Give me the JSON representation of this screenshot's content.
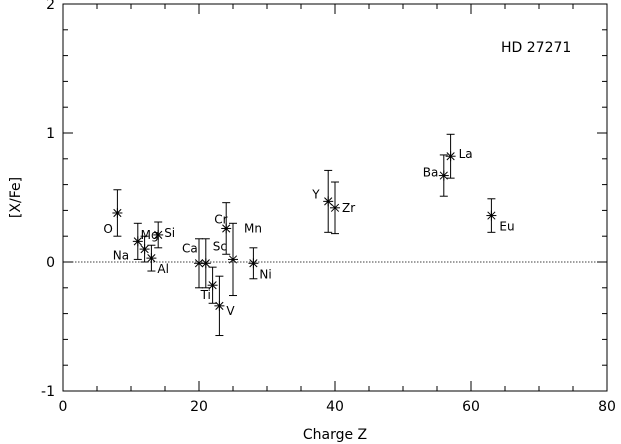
{
  "chart_data": {
    "type": "scatter",
    "title": "HD 27271",
    "xlabel": "Charge Z",
    "ylabel": "[X/Fe]",
    "xlim": [
      0,
      80
    ],
    "ylim": [
      -1.0,
      2.0
    ],
    "x_ticks": [
      "0",
      "20",
      "40",
      "60",
      "80"
    ],
    "y_ticks": [
      "-1",
      "0",
      "1",
      "2"
    ],
    "x_tick_values": [
      0,
      20,
      40,
      60,
      80
    ],
    "y_tick_values": [
      -1,
      0,
      1,
      2
    ],
    "reference_line_y": 0,
    "grid": false,
    "legend": "none",
    "points": [
      {
        "element": "O",
        "z": 8,
        "value": 0.38,
        "err": 0.18
      },
      {
        "element": "Na",
        "z": 11,
        "value": 0.16,
        "err": 0.14
      },
      {
        "element": "Mg",
        "z": 12,
        "value": 0.1,
        "err": 0.1
      },
      {
        "element": "Al",
        "z": 13,
        "value": 0.03,
        "err": 0.1
      },
      {
        "element": "Si",
        "z": 14,
        "value": 0.21,
        "err": 0.1
      },
      {
        "element": "Ca",
        "z": 20,
        "value": -0.01,
        "err": 0.19
      },
      {
        "element": "Sc",
        "z": 21,
        "value": -0.01,
        "err": 0.19
      },
      {
        "element": "Ti",
        "z": 22,
        "value": -0.18,
        "err": 0.14
      },
      {
        "element": "V",
        "z": 23,
        "value": -0.34,
        "err": 0.23
      },
      {
        "element": "Cr",
        "z": 24,
        "value": 0.26,
        "err": 0.2
      },
      {
        "element": "Mn",
        "z": 25,
        "value": 0.02,
        "err": 0.28
      },
      {
        "element": "Ni",
        "z": 28,
        "value": -0.01,
        "err": 0.12
      },
      {
        "element": "Y",
        "z": 39,
        "value": 0.47,
        "err": 0.24
      },
      {
        "element": "Zr",
        "z": 40,
        "value": 0.42,
        "err": 0.2
      },
      {
        "element": "Ba",
        "z": 56,
        "value": 0.67,
        "err": 0.16
      },
      {
        "element": "La",
        "z": 57,
        "value": 0.82,
        "err": 0.17
      },
      {
        "element": "Eu",
        "z": 63,
        "value": 0.36,
        "err": 0.13
      }
    ]
  }
}
